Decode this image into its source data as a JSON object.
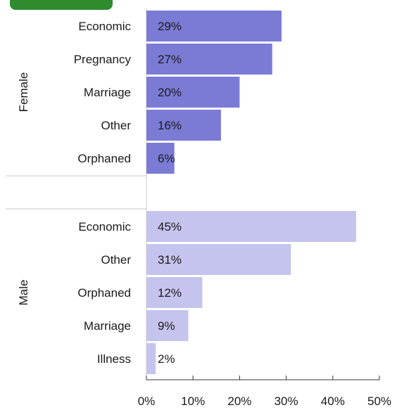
{
  "chart_data": {
    "type": "bar",
    "orientation": "horizontal",
    "title": "",
    "xlabel": "",
    "ylabel": "",
    "xlim": [
      0,
      50
    ],
    "x_ticks": [
      "0%",
      "10%",
      "20%",
      "30%",
      "40%",
      "50%"
    ],
    "grid": false,
    "legend": "none",
    "groups": [
      {
        "name": "Female",
        "color": "#7b7bd6",
        "categories": [
          "Economic",
          "Pregnancy",
          "Marriage",
          "Other",
          "Orphaned"
        ],
        "values": [
          29,
          27,
          20,
          16,
          6
        ],
        "labels": [
          "29%",
          "27%",
          "20%",
          "16%",
          "6%"
        ]
      },
      {
        "name": "Male",
        "color": "#c4c4ee",
        "categories": [
          "Economic",
          "Other",
          "Orphaned",
          "Marriage",
          "Illness"
        ],
        "values": [
          45,
          31,
          12,
          9,
          2
        ],
        "labels": [
          "45%",
          "31%",
          "12%",
          "9%",
          "2%"
        ]
      }
    ]
  },
  "colors": {
    "accent_badge": "#2e8b2e",
    "divider": "#c8c8c8",
    "axis": "#333333"
  }
}
